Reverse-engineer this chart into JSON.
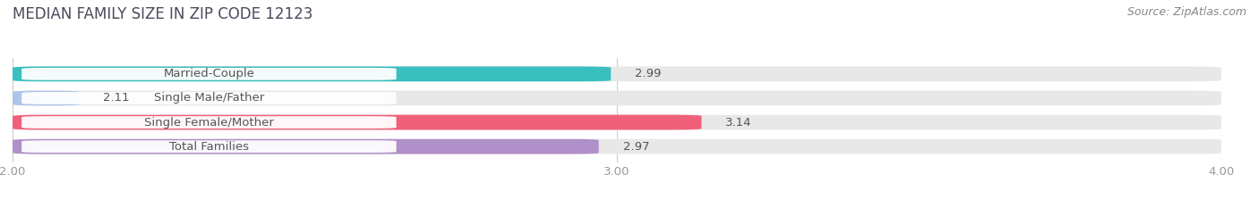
{
  "title": "MEDIAN FAMILY SIZE IN ZIP CODE 12123",
  "source": "Source: ZipAtlas.com",
  "categories": [
    "Married-Couple",
    "Single Male/Father",
    "Single Female/Mother",
    "Total Families"
  ],
  "values": [
    2.99,
    2.11,
    3.14,
    2.97
  ],
  "bar_colors": [
    "#3abfbf",
    "#aec4e8",
    "#f0607a",
    "#b090c8"
  ],
  "xlim": [
    2.0,
    4.0
  ],
  "xticks": [
    2.0,
    3.0,
    4.0
  ],
  "xtick_labels": [
    "2.00",
    "3.00",
    "4.00"
  ],
  "title_fontsize": 12,
  "label_fontsize": 9.5,
  "value_fontsize": 9.5,
  "source_fontsize": 9,
  "background_color": "#ffffff",
  "bar_height": 0.62,
  "bar_bg_color": "#e8e8e8",
  "grid_color": "#cccccc",
  "text_color": "#555555",
  "tick_color": "#999999"
}
